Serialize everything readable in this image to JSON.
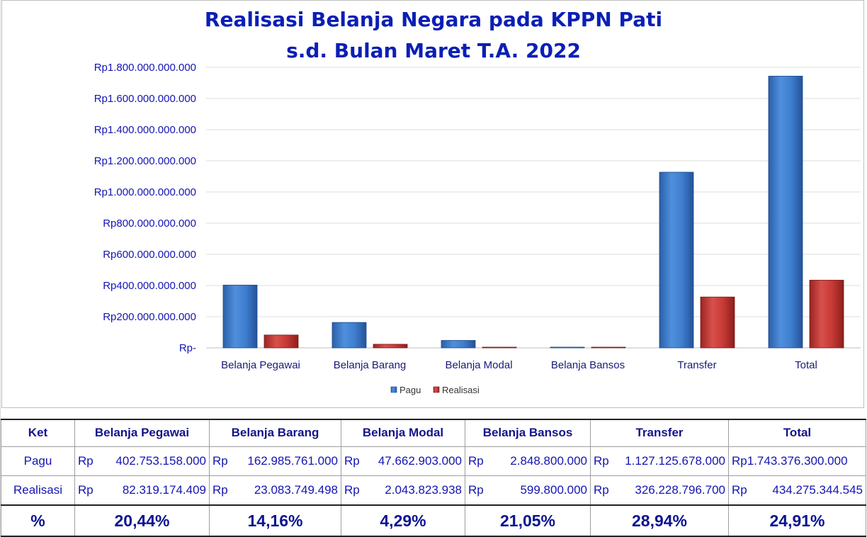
{
  "chart_data": {
    "type": "bar",
    "title": "Realisasi Belanja Negara pada KPPN Pati",
    "subtitle": "s.d. Bulan Maret T.A. 2022",
    "categories": [
      "Belanja Pegawai",
      "Belanja Barang",
      "Belanja Modal",
      "Belanja Bansos",
      "Transfer",
      "Total"
    ],
    "series": [
      {
        "name": "Pagu",
        "color": "#3f7fcf",
        "values": [
          402753158000,
          162985761000,
          47662903000,
          2848800000,
          1127125678000,
          1743376300000
        ]
      },
      {
        "name": "Realisasi",
        "color": "#c83a36",
        "values": [
          82319174409,
          23083749498,
          2043823938,
          599800000,
          326228796700,
          434275344545
        ]
      }
    ],
    "ylim": [
      0,
      1800000000000
    ],
    "yticks": [
      0,
      200000000000,
      400000000000,
      600000000000,
      800000000000,
      1000000000000,
      1200000000000,
      1400000000000,
      1600000000000,
      1800000000000
    ],
    "ytick_labels": [
      "Rp-",
      "Rp200.000.000.000",
      "Rp400.000.000.000",
      "Rp600.000.000.000",
      "Rp800.000.000.000",
      "Rp1.000.000.000.000",
      "Rp1.200.000.000.000",
      "Rp1.400.000.000.000",
      "Rp1.600.000.000.000",
      "Rp1.800.000.000.000"
    ],
    "grid": true,
    "legend_position": "bottom"
  },
  "table": {
    "header": [
      "Ket",
      "Belanja Pegawai",
      "Belanja Barang",
      "Belanja Modal",
      "Belanja Bansos",
      "Transfer",
      "Total"
    ],
    "pagu": {
      "label": "Pagu",
      "cells": [
        {
          "rp": "Rp",
          "num": "402.753.158.000"
        },
        {
          "rp": "Rp",
          "num": "162.985.761.000"
        },
        {
          "rp": "Rp",
          "num": "47.662.903.000"
        },
        {
          "rp": "Rp",
          "num": "2.848.800.000"
        },
        {
          "rp": "Rp",
          "num": "1.127.125.678.000"
        },
        {
          "rp": "Rp1.743.376.300.000",
          "num": ""
        }
      ]
    },
    "realisasi": {
      "label": "Realisasi",
      "cells": [
        {
          "rp": "Rp",
          "num": "82.319.174.409"
        },
        {
          "rp": "Rp",
          "num": "23.083.749.498"
        },
        {
          "rp": "Rp",
          "num": "2.043.823.938"
        },
        {
          "rp": "Rp",
          "num": "599.800.000"
        },
        {
          "rp": "Rp",
          "num": "326.228.796.700"
        },
        {
          "rp": "Rp",
          "num": "434.275.344.545"
        }
      ]
    },
    "percent": {
      "label": "%",
      "values": [
        "20,44%",
        "14,16%",
        "4,29%",
        "21,05%",
        "28,94%",
        "24,91%"
      ]
    }
  }
}
